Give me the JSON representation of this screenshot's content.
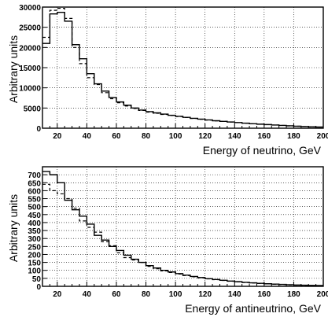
{
  "chart_data": [
    {
      "type": "line",
      "step": true,
      "xlabel": "Energy of neutrino, GeV",
      "ylabel": "Arbitrary units",
      "xlim": [
        10,
        200
      ],
      "ylim": [
        0,
        30000
      ],
      "xticks": [
        20,
        40,
        60,
        80,
        100,
        120,
        140,
        160,
        180,
        200
      ],
      "yticks": [
        0,
        5000,
        10000,
        15000,
        20000,
        25000,
        30000
      ],
      "ytick_labels": [
        "0",
        "5000",
        "10000",
        "15000",
        "20000",
        "25000",
        "30000"
      ],
      "grid": true,
      "bin_edges": [
        10,
        15,
        20,
        25,
        30,
        35,
        40,
        45,
        50,
        55,
        60,
        65,
        70,
        75,
        80,
        85,
        90,
        95,
        100,
        105,
        110,
        115,
        120,
        125,
        130,
        135,
        140,
        145,
        150,
        155,
        160,
        165,
        170,
        175,
        180,
        185,
        190,
        195,
        200
      ],
      "series": [
        {
          "style": "solid",
          "values": [
            21000,
            28300,
            28700,
            26500,
            20700,
            17200,
            13500,
            11000,
            9200,
            7600,
            6500,
            5700,
            5000,
            4500,
            4100,
            3800,
            3500,
            3200,
            2950,
            2700,
            2450,
            2250,
            2050,
            1850,
            1700,
            1550,
            1400,
            1250,
            1100,
            1000,
            900,
            800,
            700,
            600,
            500,
            420,
            350,
            290
          ]
        },
        {
          "style": "dashed",
          "values": [
            22500,
            29200,
            29700,
            27200,
            20000,
            16000,
            12500,
            10800,
            8800,
            7300,
            6300,
            5500,
            4900,
            4400,
            4000,
            3700,
            3400,
            3150,
            2900,
            2650,
            2420,
            2220,
            2020,
            1830,
            1680,
            1530,
            1380,
            1230,
            1090,
            990,
            890,
            790,
            690,
            590,
            490,
            410,
            340,
            280
          ]
        }
      ]
    },
    {
      "type": "line",
      "step": true,
      "xlabel": "Energy of antineutrino, GeV",
      "ylabel": "Arbitrary units",
      "xlim": [
        10,
        200
      ],
      "ylim": [
        0,
        750
      ],
      "xticks": [
        20,
        40,
        60,
        80,
        100,
        120,
        140,
        160,
        180,
        200
      ],
      "yticks": [
        0,
        50,
        100,
        150,
        200,
        250,
        300,
        350,
        400,
        450,
        500,
        550,
        600,
        650,
        700
      ],
      "ytick_labels": [
        "0",
        "50",
        "100",
        "150",
        "200",
        "250",
        "300",
        "350",
        "400",
        "450",
        "500",
        "550",
        "600",
        "650",
        "700"
      ],
      "grid": true,
      "bin_edges": [
        10,
        15,
        20,
        25,
        30,
        35,
        40,
        45,
        50,
        55,
        60,
        65,
        70,
        75,
        80,
        85,
        90,
        95,
        100,
        105,
        110,
        115,
        120,
        125,
        130,
        135,
        140,
        145,
        150,
        155,
        160,
        165,
        170,
        175,
        180,
        185,
        190,
        195,
        200
      ],
      "series": [
        {
          "style": "solid",
          "values": [
            720,
            700,
            650,
            540,
            480,
            440,
            390,
            320,
            290,
            250,
            225,
            195,
            170,
            150,
            130,
            115,
            100,
            90,
            80,
            70,
            62,
            55,
            48,
            43,
            38,
            33,
            29,
            25,
            22,
            19,
            16,
            14,
            12,
            10,
            8,
            7,
            6,
            5
          ]
        },
        {
          "style": "dashed",
          "values": [
            640,
            600,
            580,
            550,
            490,
            410,
            370,
            340,
            280,
            255,
            210,
            180,
            165,
            150,
            125,
            110,
            97,
            87,
            77,
            68,
            60,
            53,
            47,
            42,
            37,
            32,
            28,
            24,
            21,
            18,
            15,
            13,
            11,
            9,
            7,
            6,
            5,
            4
          ]
        }
      ]
    }
  ]
}
